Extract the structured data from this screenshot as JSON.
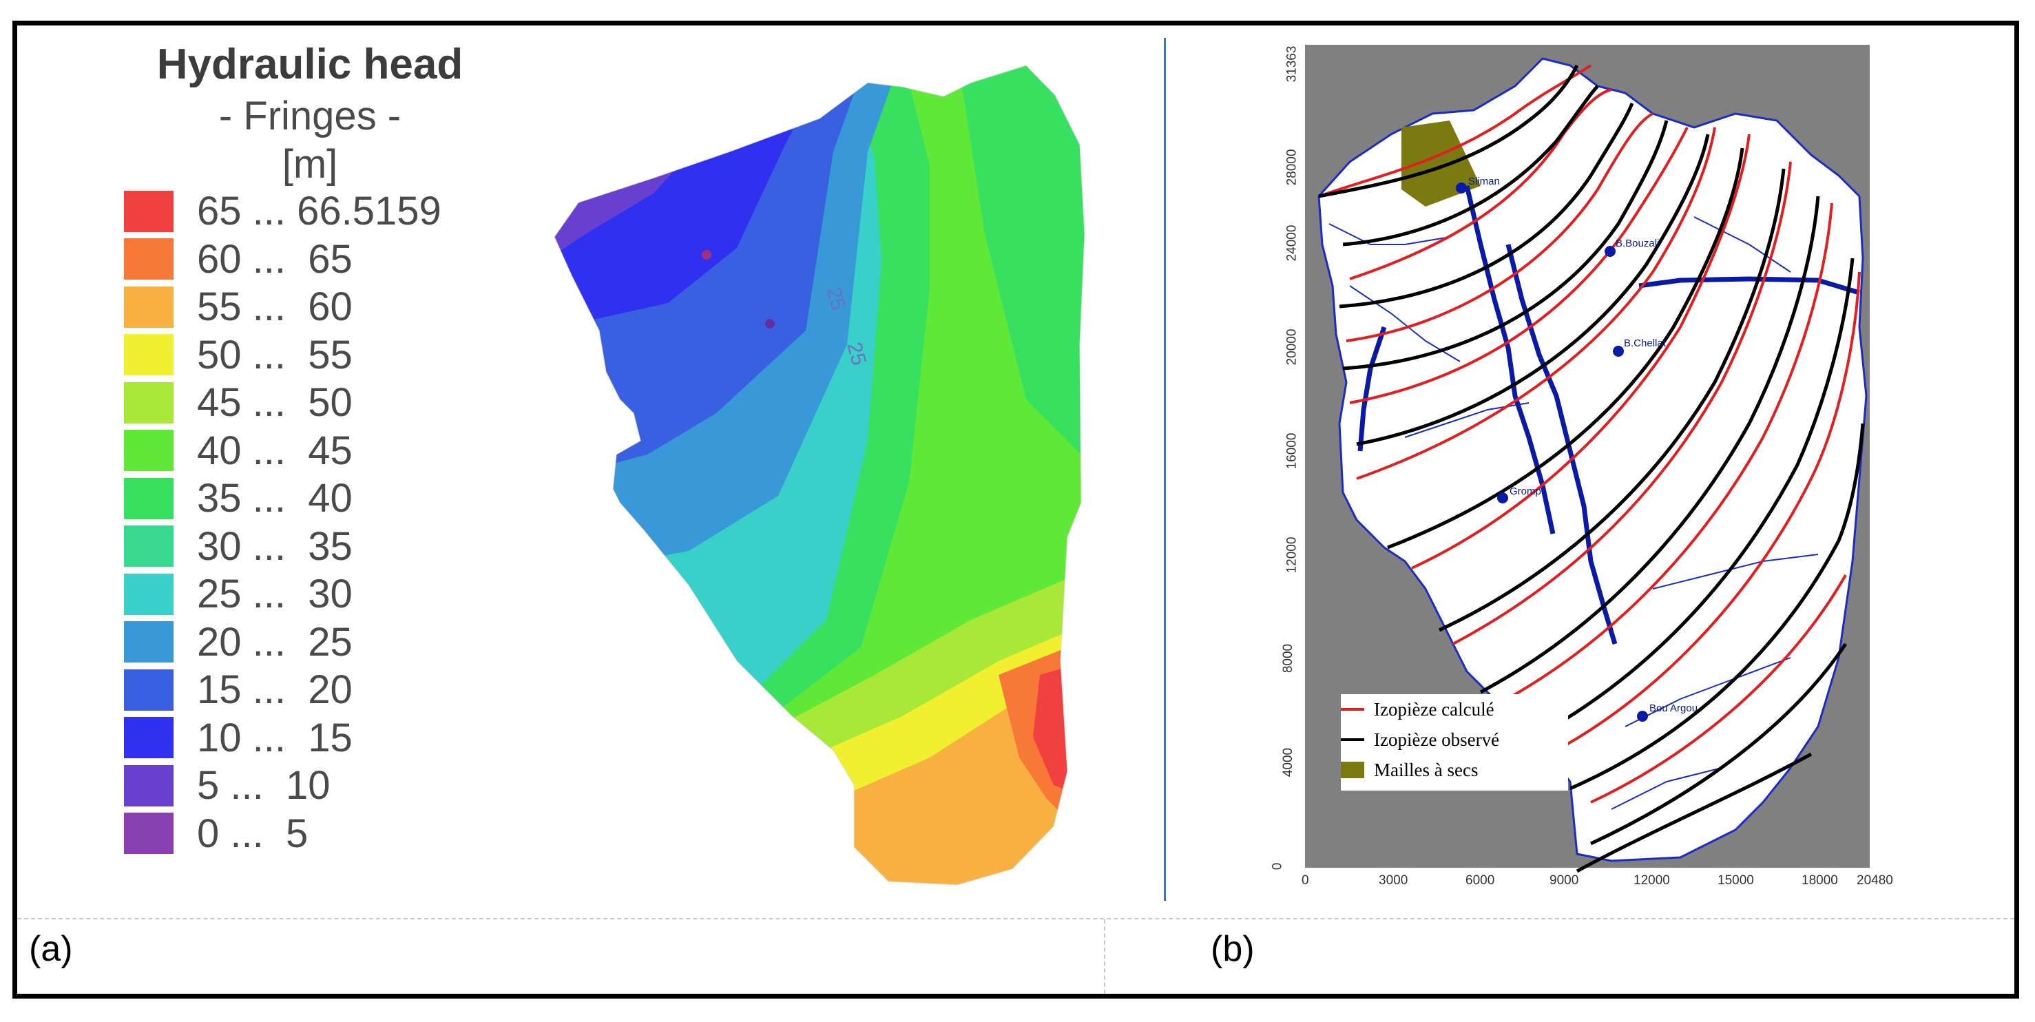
{
  "panel_a": {
    "caption": "(a)",
    "legend": {
      "title": "Hydraulic head",
      "subtitle": "- Fringes -",
      "unit": "[m]",
      "items": [
        {
          "label": "65 ... 66.5159",
          "color": "#f04040"
        },
        {
          "label": "60 ...  65",
          "color": "#f87838"
        },
        {
          "label": "55 ...  60",
          "color": "#f8b040"
        },
        {
          "label": "50 ...  55",
          "color": "#f0f030"
        },
        {
          "label": "45 ...  50",
          "color": "#a8e838"
        },
        {
          "label": "40 ...  45",
          "color": "#60e838"
        },
        {
          "label": "35 ...  40",
          "color": "#38e060"
        },
        {
          "label": "30 ...  35",
          "color": "#38d890"
        },
        {
          "label": "25 ...  30",
          "color": "#38d0c8"
        },
        {
          "label": "20 ...  25",
          "color": "#3898d8"
        },
        {
          "label": "15 ...  20",
          "color": "#3860e0"
        },
        {
          "label": "10 ...  15",
          "color": "#3030f0"
        },
        {
          "label": "5 ...  10",
          "color": "#6840d0"
        },
        {
          "label": "0 ...  5",
          "color": "#8840b0"
        }
      ]
    },
    "map_labels": [
      "25",
      "25"
    ]
  },
  "panel_b": {
    "caption": "(b)",
    "y_ticks": [
      "31363",
      "28000",
      "24000",
      "20000",
      "16000",
      "12000",
      "8000",
      "4000",
      "0"
    ],
    "x_ticks": [
      "0",
      "3000",
      "6000",
      "9000",
      "12000",
      "15000",
      "18000",
      "20480"
    ],
    "places": [
      "Sliman",
      "B.Bouzali",
      "B.Chellat",
      "Gromp",
      "Bou Argou"
    ],
    "legend": [
      {
        "label": "Izopièze calculé",
        "color": "#e02020",
        "kind": "line"
      },
      {
        "label": "Izopièze observé",
        "color": "#000000",
        "kind": "line"
      },
      {
        "label": "Mailles à secs",
        "color": "#7a7a10",
        "kind": "patch"
      }
    ],
    "background_color": "#808080"
  }
}
